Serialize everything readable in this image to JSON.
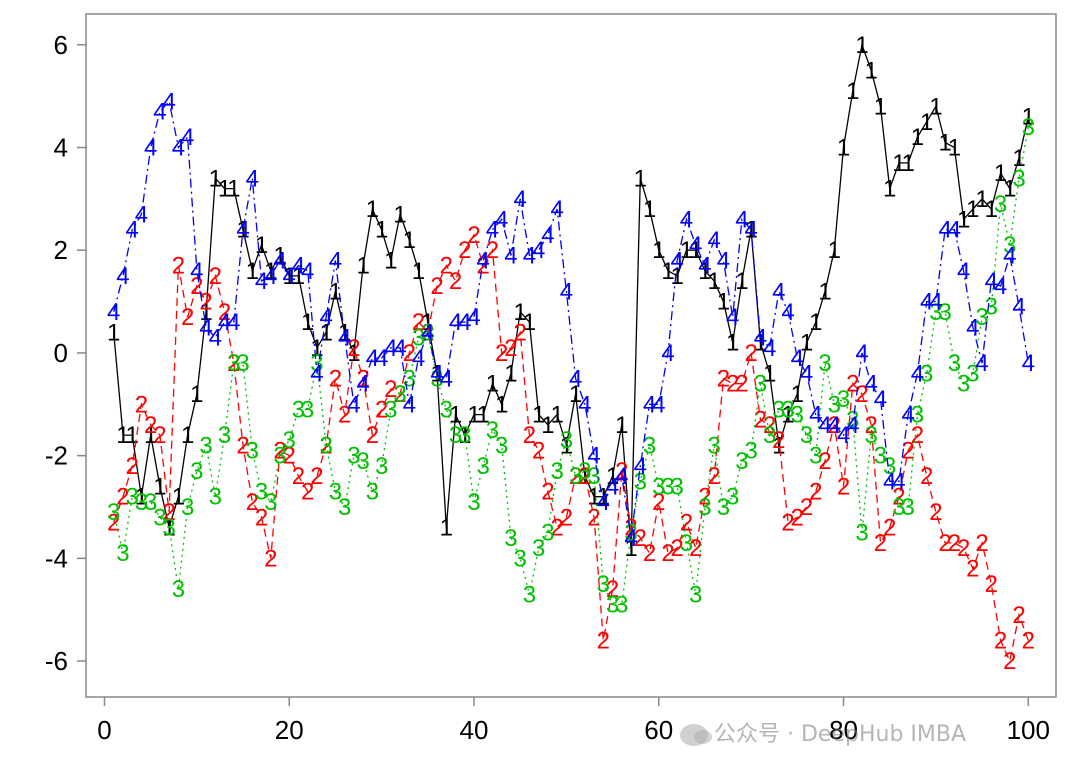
{
  "chart_data": {
    "type": "line",
    "title": "",
    "xlabel": "",
    "ylabel": "",
    "xlim": [
      -2,
      103
    ],
    "ylim": [
      -6.7,
      6.6
    ],
    "xticks": [
      0,
      20,
      40,
      60,
      80,
      100
    ],
    "yticks": [
      -6,
      -4,
      -2,
      0,
      2,
      4,
      6
    ],
    "grid": false,
    "legend": "none",
    "x": [
      1,
      2,
      3,
      4,
      5,
      6,
      7,
      8,
      9,
      10,
      11,
      12,
      13,
      14,
      15,
      16,
      17,
      18,
      19,
      20,
      21,
      22,
      23,
      24,
      25,
      26,
      27,
      28,
      29,
      30,
      31,
      32,
      33,
      34,
      35,
      36,
      37,
      38,
      39,
      40,
      41,
      42,
      43,
      44,
      45,
      46,
      47,
      48,
      49,
      50,
      51,
      52,
      53,
      54,
      55,
      56,
      57,
      58,
      59,
      60,
      61,
      62,
      63,
      64,
      65,
      66,
      67,
      68,
      69,
      70,
      71,
      72,
      73,
      74,
      75,
      76,
      77,
      78,
      79,
      80,
      81,
      82,
      83,
      84,
      85,
      86,
      87,
      88,
      89,
      90,
      91,
      92,
      93,
      94,
      95,
      96,
      97,
      98,
      99,
      100
    ],
    "series": [
      {
        "name": "1",
        "marker": "1",
        "color": "#000000",
        "linestyle": "solid",
        "values": [
          0.4,
          -1.6,
          -1.6,
          -2.8,
          -1.6,
          -2.6,
          -3.4,
          -2.8,
          -1.6,
          -0.8,
          0.8,
          3.4,
          3.2,
          3.2,
          2.4,
          1.6,
          2.1,
          1.6,
          1.9,
          1.5,
          1.5,
          0.6,
          0.1,
          0.4,
          1.2,
          0.4,
          0,
          1.7,
          2.8,
          2.4,
          1.8,
          2.7,
          2.2,
          1.6,
          0.6,
          -0.4,
          -3.4,
          -1.2,
          -1.6,
          -1.2,
          -1.2,
          -0.6,
          -1.0,
          -0.4,
          0.8,
          0.6,
          -1.2,
          -1.4,
          -1.2,
          -1.8,
          -0.8,
          -2.4,
          -2.8,
          -2.8,
          -2.4,
          -1.4,
          -3.8,
          3.4,
          2.8,
          2.0,
          1.6,
          1.5,
          2.0,
          2.0,
          1.6,
          1.4,
          1.0,
          0.2,
          1.4,
          2.4,
          0.2,
          -0.4,
          -1.8,
          -1.2,
          -0.8,
          0.2,
          0.6,
          1.2,
          2.0,
          4.0,
          5.1,
          6.0,
          5.5,
          4.8,
          3.2,
          3.7,
          3.7,
          4.2,
          4.5,
          4.8,
          4.1,
          4.0,
          2.6,
          2.8,
          3.0,
          2.8,
          3.5,
          3.2,
          3.8,
          4.6
        ]
      },
      {
        "name": "2",
        "marker": "2",
        "color": "#ff0000",
        "linestyle": "dashed",
        "values": [
          -3.3,
          -2.8,
          -2.2,
          -1.0,
          -1.4,
          -1.6,
          -3.1,
          1.7,
          0.7,
          1.3,
          1.0,
          1.5,
          0.8,
          -0.2,
          -1.8,
          -2.9,
          -3.2,
          -4.0,
          -1.9,
          -2.0,
          -2.4,
          -2.7,
          -2.4,
          -1.8,
          -0.5,
          -1.2,
          0.1,
          -0.5,
          -1.6,
          -1.1,
          -0.7,
          -0.8,
          0.0,
          0.6,
          0.4,
          1.3,
          1.7,
          1.4,
          2.0,
          2.3,
          1.7,
          2.0,
          0.0,
          0.1,
          0.4,
          -1.6,
          -1.9,
          -2.7,
          -3.4,
          -3.2,
          -2.4,
          -2.4,
          -3.2,
          -5.6,
          -4.6,
          -2.3,
          -3.4,
          -3.6,
          -3.9,
          -2.9,
          -3.9,
          -3.8,
          -3.3,
          -3.8,
          -2.8,
          -2.4,
          -0.5,
          -0.6,
          -0.6,
          0.0,
          -1.3,
          -1.4,
          -1.7,
          -3.3,
          -3.2,
          -3.0,
          -2.7,
          -2.1,
          -1.4,
          -2.6,
          -0.6,
          -0.8,
          -1.4,
          -3.7,
          -3.4,
          -2.8,
          -1.9,
          -1.6,
          -2.4,
          -3.1,
          -3.7,
          -3.7,
          -3.8,
          -4.2,
          -3.7,
          -4.5,
          -5.6,
          -6.0,
          -5.1,
          -5.6
        ]
      },
      {
        "name": "3",
        "marker": "3",
        "color": "#00c000",
        "linestyle": "dotted",
        "values": [
          -3.1,
          -3.9,
          -2.8,
          -2.9,
          -2.9,
          -3.2,
          -3.4,
          -4.6,
          -3.0,
          -2.3,
          -1.8,
          -2.8,
          -1.6,
          -0.2,
          -0.2,
          -1.9,
          -2.7,
          -2.9,
          -2.0,
          -1.7,
          -1.1,
          -1.1,
          -0.2,
          -1.8,
          -2.7,
          -3.0,
          -2.0,
          -2.1,
          -2.7,
          -2.2,
          -1.1,
          -0.8,
          -0.5,
          0.3,
          0.4,
          -0.5,
          -1.1,
          -1.6,
          -1.6,
          -2.9,
          -2.2,
          -1.5,
          -1.8,
          -3.6,
          -4.0,
          -4.7,
          -3.8,
          -3.5,
          -2.3,
          -1.7,
          -2.4,
          -2.3,
          -2.4,
          -4.5,
          -4.9,
          -4.9,
          -3.5,
          -2.5,
          -1.8,
          -2.6,
          -2.6,
          -2.6,
          -3.7,
          -4.7,
          -3.0,
          -1.8,
          -3.0,
          -2.8,
          -2.1,
          -1.9,
          -0.6,
          -1.6,
          -1.1,
          -1.1,
          -1.2,
          -1.6,
          -2.0,
          -0.2,
          -1.0,
          -0.9,
          -1.3,
          -3.5,
          -1.6,
          -2.0,
          -2.2,
          -3.0,
          -3.0,
          -1.2,
          -0.4,
          0.8,
          0.8,
          -0.2,
          -0.6,
          -0.4,
          0.7,
          0.9,
          2.9,
          2.1,
          3.4,
          4.4
        ]
      },
      {
        "name": "4",
        "marker": "4",
        "color": "#0000ff",
        "linestyle": "dashdot",
        "values": [
          0.8,
          1.5,
          2.4,
          2.7,
          4.0,
          4.7,
          4.9,
          4.0,
          4.2,
          1.6,
          0.5,
          0.3,
          0.6,
          0.6,
          2.4,
          3.4,
          1.4,
          1.5,
          1.8,
          1.5,
          1.7,
          1.6,
          -0.4,
          0.7,
          1.8,
          0.3,
          -1.0,
          -0.6,
          -0.1,
          -0.1,
          0.1,
          0.1,
          -1.0,
          -0.1,
          0.4,
          -0.4,
          -0.5,
          0.6,
          0.6,
          0.7,
          1.8,
          2.4,
          2.6,
          1.9,
          3.0,
          1.9,
          2.0,
          2.3,
          2.8,
          1.2,
          -0.5,
          -1.0,
          -2.0,
          -2.9,
          -2.6,
          -2.4,
          -3.6,
          -2.2,
          -1.0,
          -1.0,
          0.0,
          1.8,
          2.6,
          2.1,
          1.7,
          2.2,
          1.8,
          0.7,
          2.6,
          2.4,
          0.3,
          0.1,
          1.2,
          0.8,
          -0.1,
          -0.4,
          -1.2,
          -1.4,
          -1.4,
          -1.6,
          -1.4,
          0.0,
          -0.6,
          -0.9,
          -2.5,
          -2.5,
          -1.2,
          -0.4,
          1.0,
          1.0,
          2.4,
          2.4,
          1.6,
          0.5,
          -0.2,
          1.4,
          1.3,
          1.9,
          0.9,
          -0.2
        ]
      }
    ]
  },
  "watermark": {
    "text": "公众号 · DeepHub IMBA",
    "logo": "wechat-icon"
  }
}
